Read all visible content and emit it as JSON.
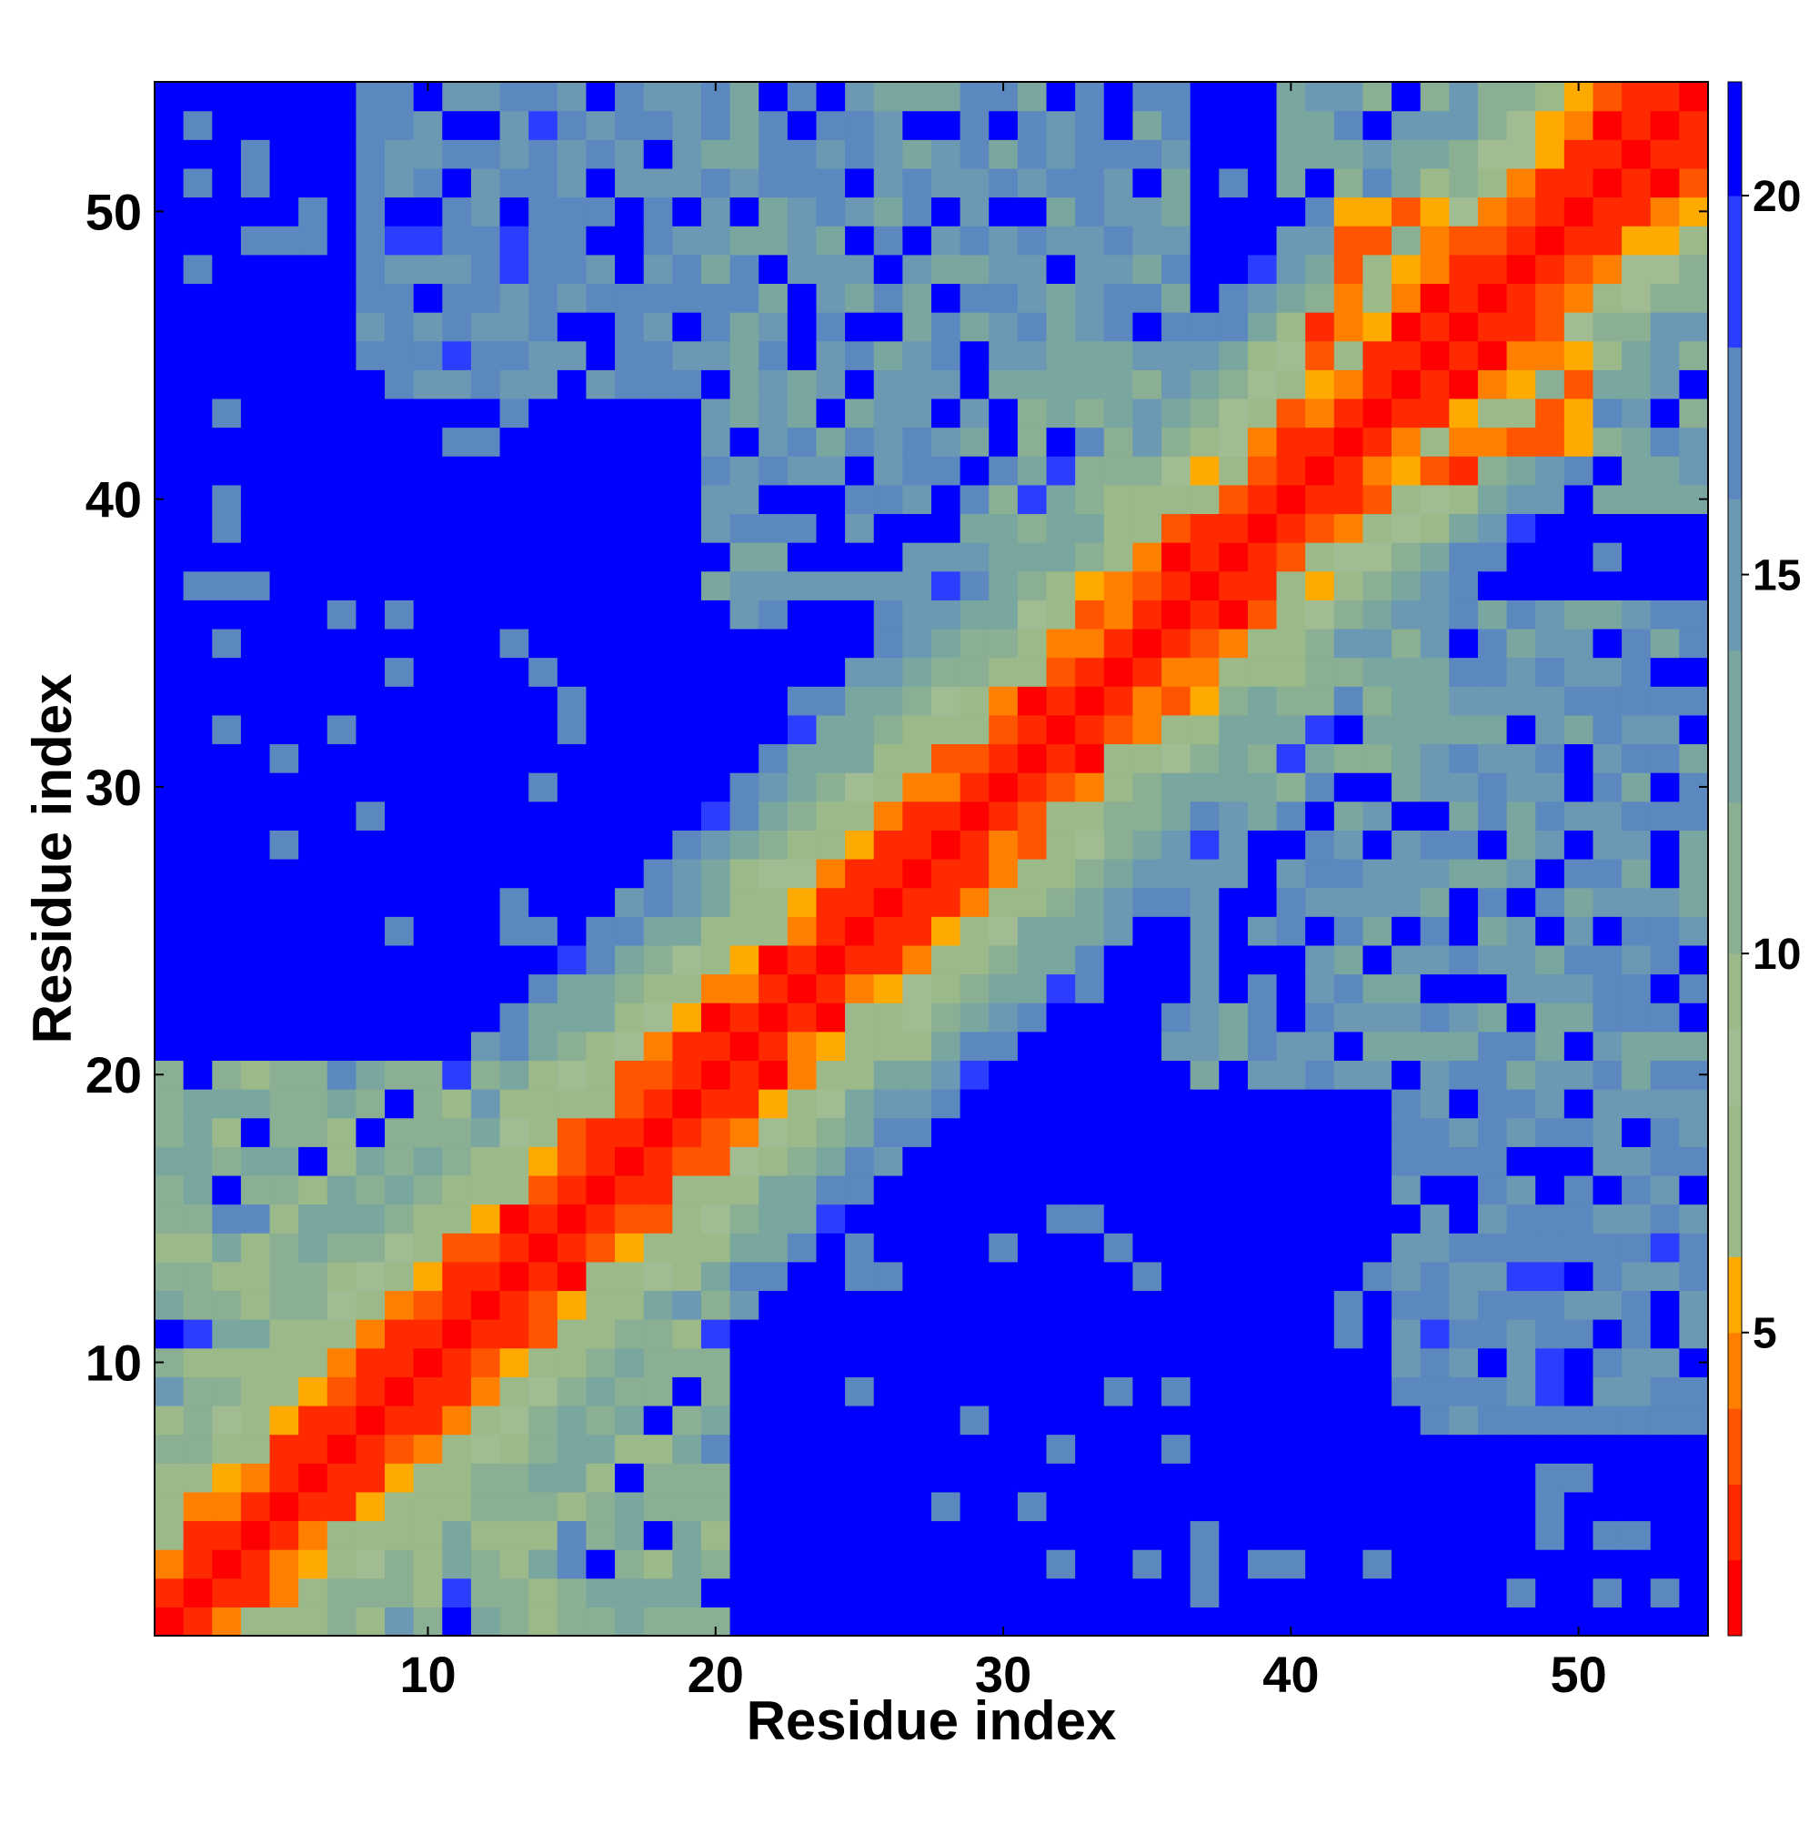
{
  "chart_data": {
    "type": "heatmap",
    "title": "",
    "xlabel": "Residue index",
    "ylabel": "Residue index",
    "n": 54,
    "xlim": [
      0.5,
      54.5
    ],
    "ylim": [
      0.5,
      54.5
    ],
    "x_ticks": [
      10,
      20,
      30,
      40,
      50
    ],
    "y_ticks": [
      10,
      20,
      30,
      40,
      50
    ],
    "grid": false,
    "colorbar": {
      "position": "right",
      "range": [
        1,
        21.5
      ],
      "ticks": [
        5,
        10,
        15,
        20
      ],
      "colors": [
        "#ff0000",
        "#ff2a00",
        "#ff5500",
        "#ff8000",
        "#ffaa00",
        "#9cb98a",
        "#9cb98a",
        "#a1bc92",
        "#9cb98a",
        "#8aaf93",
        "#7aa6a0",
        "#6b98b3",
        "#5b88bf",
        "#2b3eff",
        "#0000ff"
      ],
      "bounds": [
        1,
        2,
        3,
        4,
        5,
        6,
        7,
        8,
        9,
        10,
        12,
        14,
        16,
        18,
        20,
        21.5
      ]
    },
    "colors": {
      "contact": "#ff0000",
      "near": "#ff5500",
      "mid": "#ffaa00",
      "sage": "#9cb98a",
      "gray_teal": "#8aaf93",
      "steel_blue": "#5b88bf",
      "background": "#0000ff"
    },
    "value_rule": "symmetric distance map: value(i,j) = f(|i-j|) + structured noise; 0-2 red, 2-4 orange, 4-12 sage/teal, 12-20 steel blue, >20 blue",
    "band_values": [
      {
        "offset": 0,
        "value": 1
      },
      {
        "offset": 1,
        "value": 2
      },
      {
        "offset": 2,
        "value": 3
      },
      {
        "offset": 3,
        "value": 5
      },
      {
        "offset": 4,
        "value": 7
      },
      {
        "offset": 5,
        "value": 9
      },
      {
        "offset": 6,
        "value": 11
      },
      {
        "offset": 7,
        "value": 13
      },
      {
        "offset": 8,
        "value": 15
      },
      {
        "offset": 9,
        "value": 17
      }
    ],
    "offdiag_clusters": [
      {
        "i_range": [
          1,
          20
        ],
        "j_range": [
          1,
          20
        ],
        "value": 12
      },
      {
        "i_range": [
          20,
          36
        ],
        "j_range": [
          36,
          54
        ],
        "value": 16
      },
      {
        "i_range": [
          40,
          54
        ],
        "j_range": [
          40,
          54
        ],
        "value": 14
      },
      {
        "i_range": [
          8,
          20
        ],
        "j_range": [
          44,
          54
        ],
        "value": 17
      },
      {
        "i_range": [
          30,
          40
        ],
        "j_range": [
          30,
          44
        ],
        "value": 13
      },
      {
        "i_range": [
          48,
          54
        ],
        "j_range": [
          10,
          20
        ],
        "value": 17
      },
      {
        "i_range": [
          41,
          44
        ],
        "j_range": [
          45,
          50
        ],
        "value": 5
      },
      {
        "i_range": [
          44,
          50
        ],
        "j_range": [
          41,
          45
        ],
        "value": 5
      }
    ]
  }
}
